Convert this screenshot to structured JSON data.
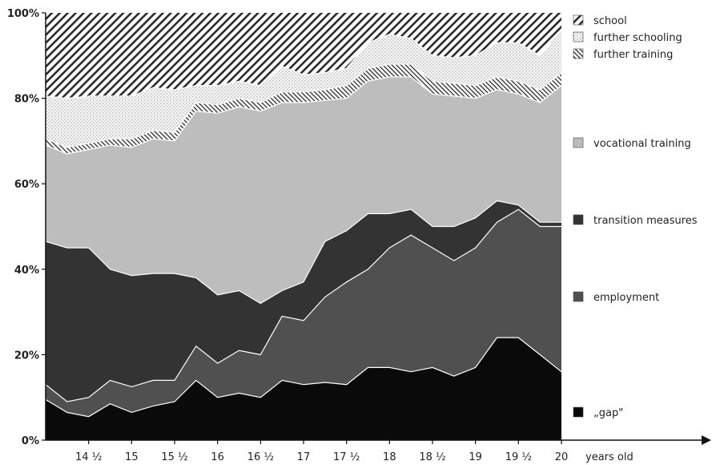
{
  "chart_data": {
    "type": "area",
    "stacked": true,
    "x": [
      14.0,
      14.25,
      14.5,
      14.75,
      15.0,
      15.25,
      15.5,
      15.75,
      16.0,
      16.25,
      16.5,
      16.75,
      17.0,
      17.25,
      17.5,
      17.75,
      18.0,
      18.25,
      18.5,
      18.75,
      19.0,
      19.25,
      19.5,
      19.75,
      20.0
    ],
    "x_ticks": [
      {
        "value": 14.5,
        "label": "14 ½"
      },
      {
        "value": 15.0,
        "label": "15"
      },
      {
        "value": 15.5,
        "label": "15 ½"
      },
      {
        "value": 16.0,
        "label": "16"
      },
      {
        "value": 16.5,
        "label": "16 ½"
      },
      {
        "value": 17.0,
        "label": "17"
      },
      {
        "value": 17.5,
        "label": "17 ½"
      },
      {
        "value": 18.0,
        "label": "18"
      },
      {
        "value": 18.5,
        "label": "18 ½"
      },
      {
        "value": 19.0,
        "label": "19"
      },
      {
        "value": 19.5,
        "label": "19 ½"
      },
      {
        "value": 20.0,
        "label": "20"
      }
    ],
    "xlim": [
      14.0,
      20.0
    ],
    "xlabel": "years old",
    "ylim": [
      0,
      100
    ],
    "y_ticks": [
      {
        "value": 0,
        "label": "0%"
      },
      {
        "value": 20,
        "label": "20%"
      },
      {
        "value": 40,
        "label": "40%"
      },
      {
        "value": 60,
        "label": "60%"
      },
      {
        "value": 80,
        "label": "80%"
      },
      {
        "value": 100,
        "label": "100%"
      }
    ],
    "series": [
      {
        "name": "„gap\"",
        "fill": "#0a0a0a",
        "pattern": "none",
        "values": [
          9.5,
          6.5,
          5.5,
          8.5,
          6.5,
          8.0,
          9.0,
          14.0,
          10.0,
          11.0,
          10.0,
          14.0,
          13.0,
          13.5,
          13.0,
          17.0,
          17.0,
          16.0,
          17.0,
          15.0,
          17.0,
          24.0,
          24.0,
          20.0,
          16.0
        ]
      },
      {
        "name": "employment",
        "fill": "#505050",
        "pattern": "none",
        "values": [
          3.5,
          2.5,
          4.5,
          5.5,
          6.0,
          6.0,
          5.0,
          8.0,
          8.0,
          10.0,
          10.0,
          15.0,
          15.0,
          20.0,
          24.0,
          23.0,
          28.0,
          32.0,
          28.0,
          27.0,
          28.0,
          27.0,
          30.0,
          30.0,
          34.0
        ]
      },
      {
        "name": "transition measures",
        "fill": "#333333",
        "pattern": "none",
        "values": [
          33.5,
          36.0,
          35.0,
          26.0,
          26.0,
          25.0,
          25.0,
          16.0,
          16.0,
          14.0,
          12.0,
          6.0,
          9.0,
          13.0,
          12.0,
          13.0,
          8.0,
          6.0,
          5.0,
          8.0,
          7.0,
          5.0,
          1.0,
          1.0,
          1.0
        ]
      },
      {
        "name": "vocational training",
        "fill": "#bdbdbd",
        "pattern": "none",
        "values": [
          22.5,
          22.0,
          23.0,
          29.0,
          30.0,
          31.5,
          31.0,
          39.0,
          42.5,
          43.0,
          45.0,
          44.0,
          42.0,
          33.0,
          31.0,
          31.0,
          32.0,
          31.0,
          31.0,
          30.5,
          28.0,
          26.0,
          26.0,
          28.0,
          32.0
        ]
      },
      {
        "name": "further training",
        "fill": "#ffffff",
        "pattern": "diagonal-fine",
        "values": [
          1.5,
          1.5,
          1.5,
          1.5,
          2.0,
          2.0,
          2.0,
          2.0,
          2.0,
          2.0,
          2.0,
          2.5,
          2.5,
          2.5,
          3.0,
          3.0,
          3.0,
          3.0,
          3.0,
          3.0,
          3.0,
          3.0,
          3.0,
          3.0,
          3.0
        ]
      },
      {
        "name": "further schooling",
        "fill": "#f4f4f4",
        "pattern": "dots",
        "values": [
          10.0,
          11.5,
          11.0,
          10.0,
          10.0,
          10.0,
          10.0,
          4.0,
          4.5,
          4.0,
          4.0,
          6.0,
          4.0,
          4.0,
          4.0,
          6.0,
          7.0,
          6.0,
          6.0,
          6.0,
          7.0,
          8.0,
          9.0,
          8.0,
          10.0
        ]
      },
      {
        "name": "school",
        "fill": "#ffffff",
        "pattern": "diagonal-bold",
        "values": [
          19.5,
          20.0,
          19.5,
          19.5,
          19.5,
          17.5,
          18.0,
          17.0,
          17.0,
          16.0,
          17.0,
          12.5,
          14.5,
          14.0,
          13.0,
          7.0,
          5.0,
          6.0,
          10.0,
          10.5,
          10.0,
          7.0,
          7.0,
          10.0,
          4.0
        ]
      }
    ],
    "legend_order": [
      "school",
      "further schooling",
      "further training",
      "vocational training",
      "transition measures",
      "employment",
      "„gap\""
    ],
    "legend_placement": "right",
    "grid": false
  }
}
